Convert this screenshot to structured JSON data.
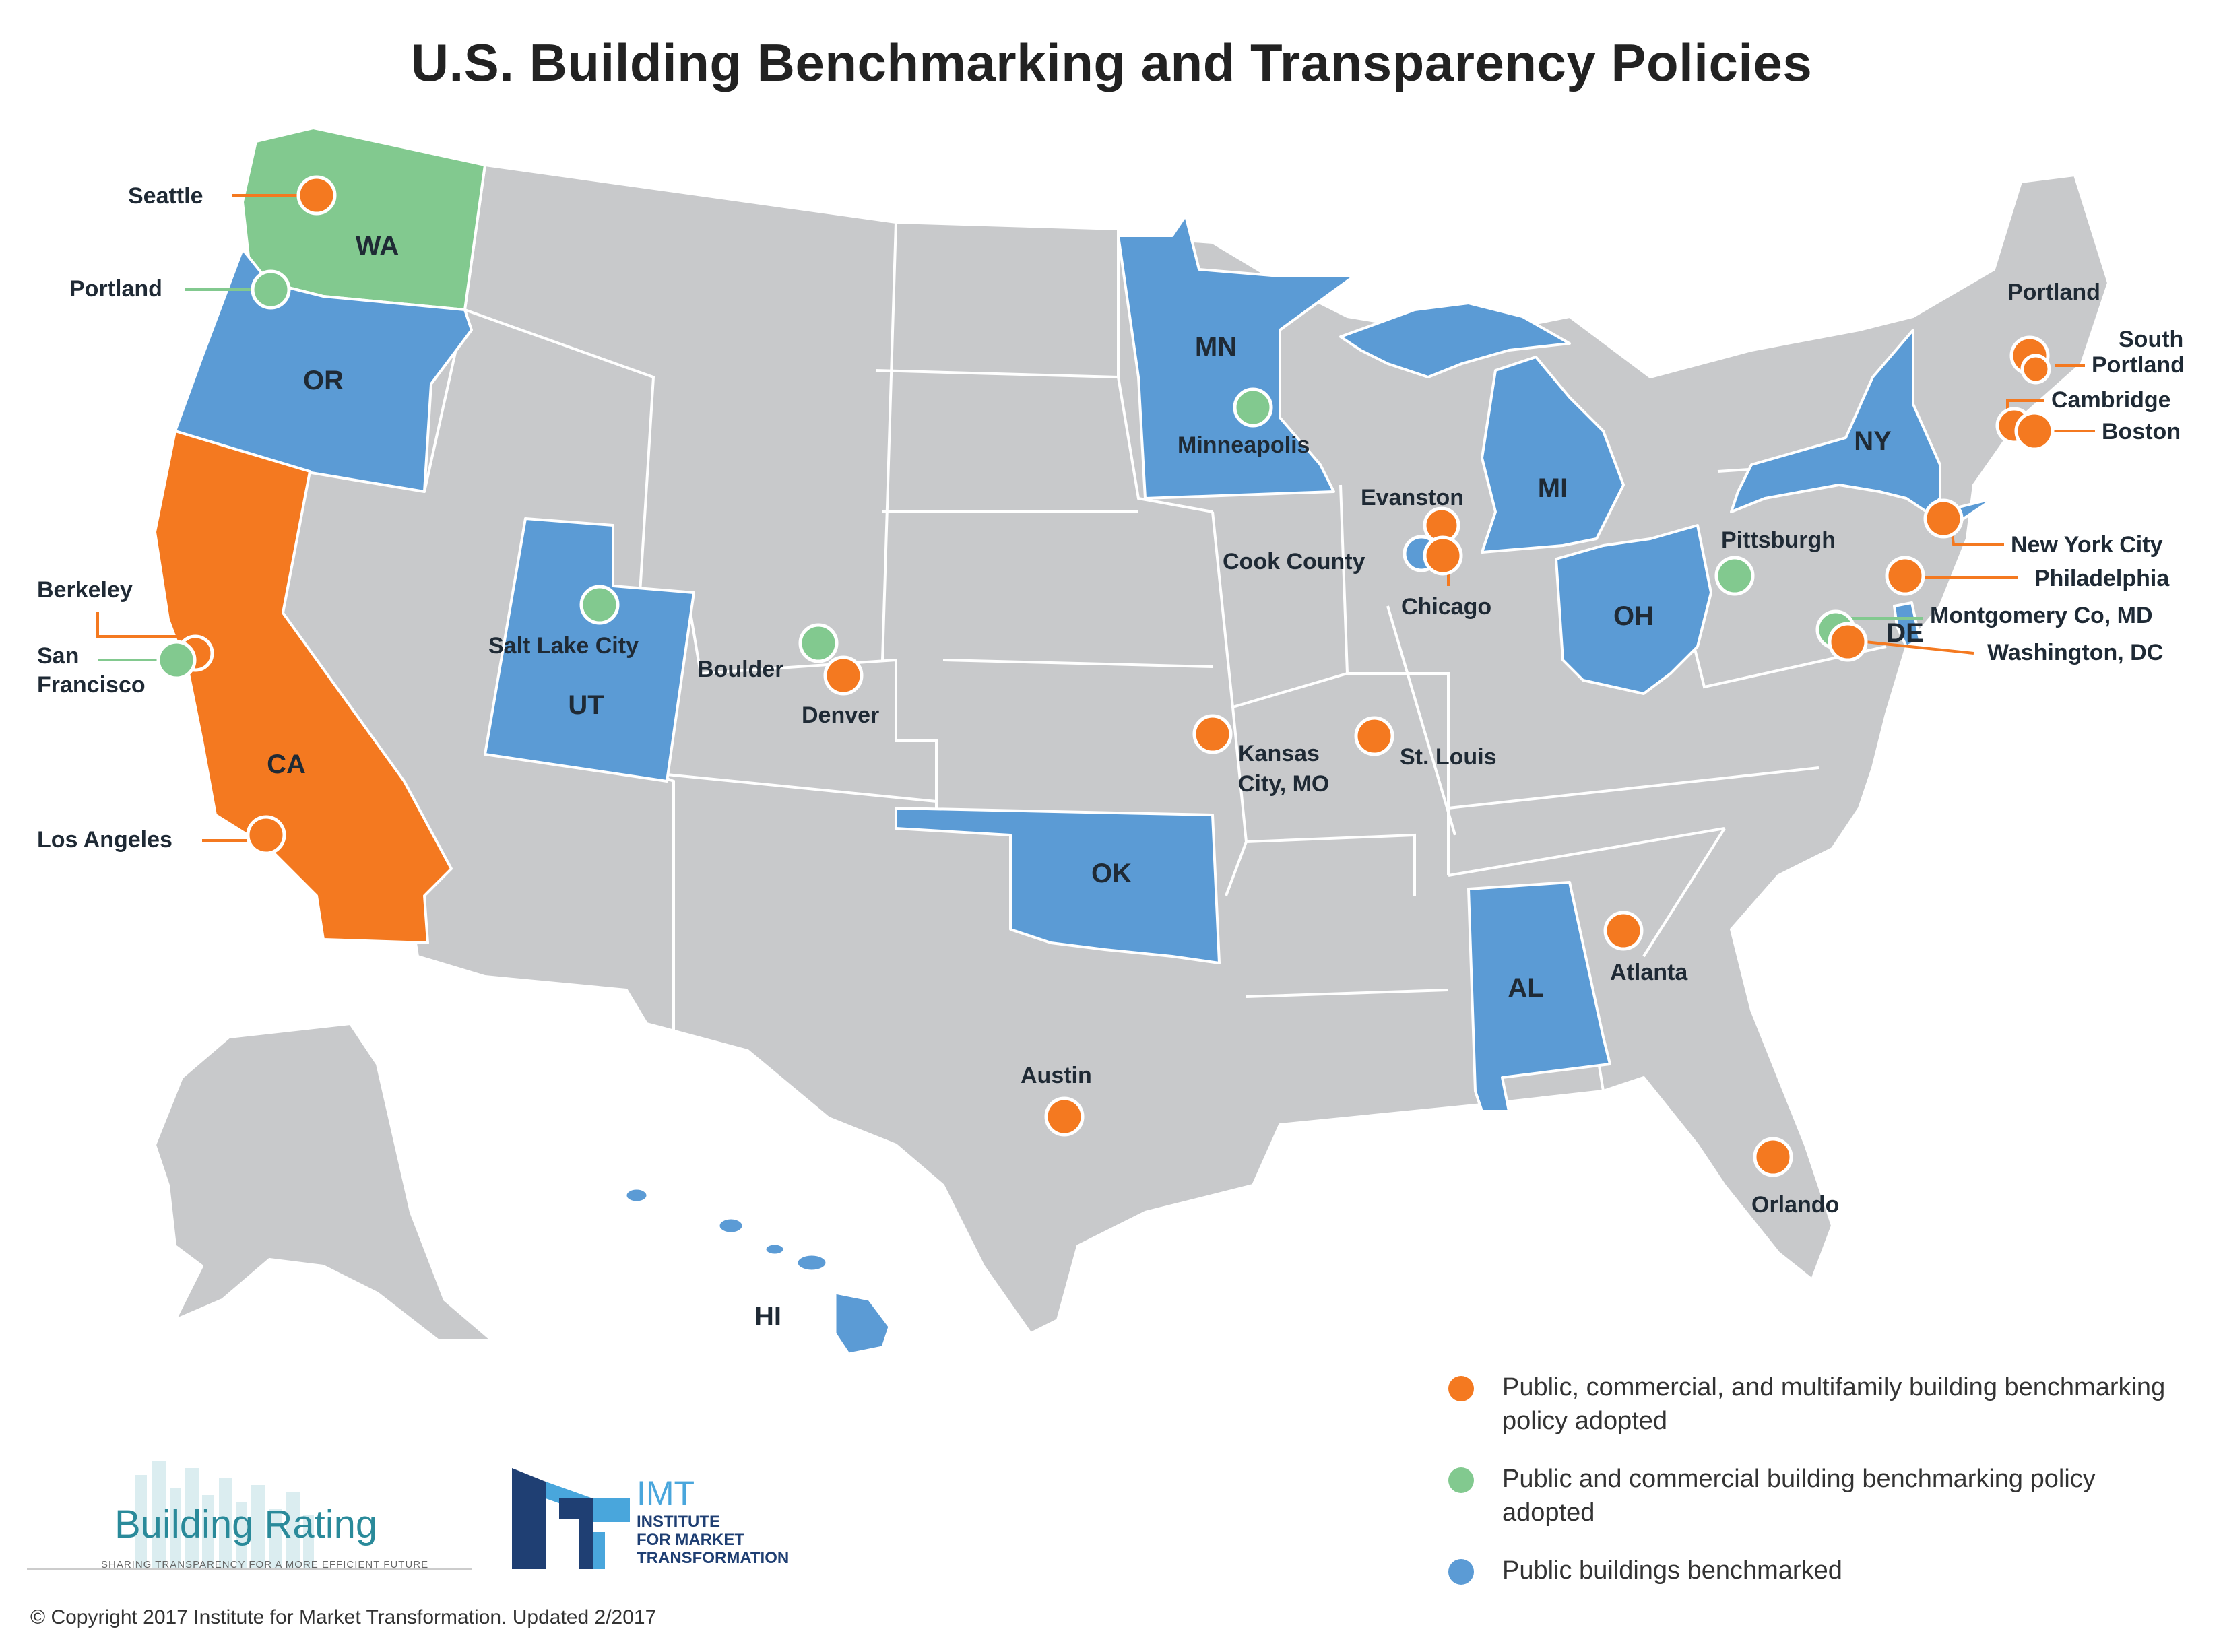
{
  "title": "U.S. Building Benchmarking and Transparency Policies",
  "colors": {
    "orange": "#f47920",
    "green": "#82c98f",
    "blue": "#5b9bd5",
    "gray": "#c8c9cb"
  },
  "states": [
    {
      "abbr": "WA",
      "policy": "green"
    },
    {
      "abbr": "OR",
      "policy": "blue"
    },
    {
      "abbr": "CA",
      "policy": "orange"
    },
    {
      "abbr": "UT",
      "policy": "blue"
    },
    {
      "abbr": "MN",
      "policy": "blue"
    },
    {
      "abbr": "MI",
      "policy": "blue"
    },
    {
      "abbr": "OH",
      "policy": "blue"
    },
    {
      "abbr": "NY",
      "policy": "blue"
    },
    {
      "abbr": "OK",
      "policy": "blue"
    },
    {
      "abbr": "AL",
      "policy": "blue"
    },
    {
      "abbr": "DE",
      "policy": "blue"
    },
    {
      "abbr": "HI",
      "policy": "blue"
    }
  ],
  "state_labels": [
    "WA",
    "OR",
    "CA",
    "UT",
    "MN",
    "MI",
    "OH",
    "NY",
    "DE",
    "OK",
    "AL",
    "HI"
  ],
  "cities": [
    {
      "name": "Seattle",
      "policy": "orange"
    },
    {
      "name": "Portland",
      "policy": "green"
    },
    {
      "name": "Berkeley",
      "policy": "orange"
    },
    {
      "name": "San Francisco",
      "policy": "green"
    },
    {
      "name": "Los Angeles",
      "policy": "orange"
    },
    {
      "name": "Salt Lake City",
      "policy": "green"
    },
    {
      "name": "Boulder",
      "policy": "green"
    },
    {
      "name": "Denver",
      "policy": "orange"
    },
    {
      "name": "Minneapolis",
      "policy": "green"
    },
    {
      "name": "Kansas City, MO",
      "policy": "orange"
    },
    {
      "name": "St. Louis",
      "policy": "orange"
    },
    {
      "name": "Evanston",
      "policy": "orange"
    },
    {
      "name": "Cook County",
      "policy": "blue"
    },
    {
      "name": "Chicago",
      "policy": "orange"
    },
    {
      "name": "Pittsburgh",
      "policy": "green"
    },
    {
      "name": "Austin",
      "policy": "orange"
    },
    {
      "name": "Atlanta",
      "policy": "orange"
    },
    {
      "name": "Orlando",
      "policy": "orange"
    },
    {
      "name": "Portland",
      "policy": "orange"
    },
    {
      "name": "South Portland",
      "policy": "orange"
    },
    {
      "name": "Cambridge",
      "policy": "orange"
    },
    {
      "name": "Boston",
      "policy": "orange"
    },
    {
      "name": "New York City",
      "policy": "orange"
    },
    {
      "name": "Philadelphia",
      "policy": "orange"
    },
    {
      "name": "Montgomery Co, MD",
      "policy": "green"
    },
    {
      "name": "Washington, DC",
      "policy": "orange"
    }
  ],
  "legend": [
    {
      "label": "Public, commercial, and multifamily building benchmarking policy adopted",
      "color": "#f47920"
    },
    {
      "label": "Public and commercial building benchmarking policy adopted",
      "color": "#82c98f"
    },
    {
      "label": "Public buildings benchmarked",
      "color": "#5b9bd5"
    }
  ],
  "logos": {
    "building_rating": {
      "name": "Building Rating",
      "tagline": "SHARING TRANSPARENCY FOR A MORE EFFICIENT FUTURE"
    },
    "imt": {
      "name": "IMT",
      "line1": "INSTITUTE",
      "line2": "FOR MARKET",
      "line3": "TRANSFORMATION"
    }
  },
  "footer": "© Copyright 2017 Institute for Market Transformation. Updated 2/2017"
}
